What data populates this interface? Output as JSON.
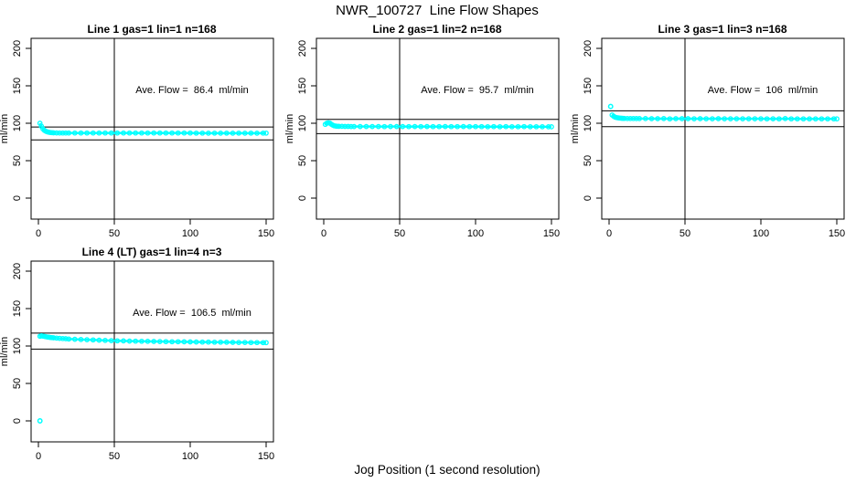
{
  "figure": {
    "title": "NWR_100727  Line Flow Shapes",
    "xlabel": "Jog Position (1 second resolution)"
  },
  "colors": {
    "marker": "#00FFFF",
    "axis": "#000000",
    "background": "#FFFFFF"
  },
  "chart_data": [
    {
      "type": "scatter",
      "title": "Line 1 gas=1 lin=1 n=168",
      "annotation": "Ave. Flow =  86.4  ml/min",
      "ave_flow_ml_min": 86.4,
      "n": 168,
      "ylabel": "ml/min",
      "xlim": [
        0,
        150
      ],
      "ylim": [
        0,
        200
      ],
      "x_ticks": [
        0,
        50,
        100,
        150
      ],
      "y_ticks": [
        0,
        50,
        100,
        150,
        200
      ],
      "vline_x": 50,
      "hlines": [
        95.0,
        77.8
      ],
      "points": [
        [
          1,
          100
        ],
        [
          2,
          96
        ],
        [
          3,
          92.5
        ],
        [
          4,
          90.5
        ],
        [
          5,
          89.2
        ],
        [
          6,
          88.4
        ],
        [
          7,
          87.9
        ],
        [
          8,
          87.6
        ],
        [
          9,
          87.4
        ],
        [
          10,
          87.2
        ],
        [
          12,
          87.1
        ],
        [
          14,
          87
        ],
        [
          16,
          87
        ],
        [
          18,
          87
        ],
        [
          20,
          87
        ],
        [
          24,
          87
        ],
        [
          28,
          87
        ],
        [
          32,
          87
        ],
        [
          36,
          86.9
        ],
        [
          40,
          86.9
        ],
        [
          44,
          87
        ],
        [
          48,
          87
        ],
        [
          52,
          87
        ],
        [
          56,
          86.9
        ],
        [
          60,
          87
        ],
        [
          64,
          87
        ],
        [
          68,
          86.9
        ],
        [
          72,
          87
        ],
        [
          76,
          87
        ],
        [
          80,
          86.9
        ],
        [
          84,
          87
        ],
        [
          88,
          86.9
        ],
        [
          92,
          87
        ],
        [
          96,
          86.9
        ],
        [
          100,
          86.9
        ],
        [
          104,
          86.8
        ],
        [
          108,
          86.8
        ],
        [
          112,
          86.7
        ],
        [
          116,
          86.8
        ],
        [
          120,
          86.7
        ],
        [
          124,
          86.8
        ],
        [
          128,
          86.7
        ],
        [
          132,
          86.8
        ],
        [
          136,
          86.7
        ],
        [
          140,
          86.8
        ],
        [
          144,
          86.7
        ],
        [
          148,
          86.8
        ],
        [
          150,
          86.8
        ]
      ],
      "isolated_points": []
    },
    {
      "type": "scatter",
      "title": "Line 2 gas=1 lin=2 n=168",
      "annotation": "Ave. Flow =  95.7  ml/min",
      "ave_flow_ml_min": 95.7,
      "n": 168,
      "ylabel": "ml/min",
      "xlim": [
        0,
        150
      ],
      "ylim": [
        0,
        200
      ],
      "x_ticks": [
        0,
        50,
        100,
        150
      ],
      "y_ticks": [
        0,
        50,
        100,
        150,
        200
      ],
      "vline_x": 50,
      "hlines": [
        105.3,
        86.1
      ],
      "points": [
        [
          1,
          98.5
        ],
        [
          2,
          100
        ],
        [
          3,
          100.6
        ],
        [
          4,
          100.2
        ],
        [
          5,
          98.6
        ],
        [
          6,
          97.4
        ],
        [
          7,
          96.6
        ],
        [
          8,
          96.2
        ],
        [
          9,
          96
        ],
        [
          10,
          95.9
        ],
        [
          12,
          95.8
        ],
        [
          14,
          95.7
        ],
        [
          16,
          95.7
        ],
        [
          18,
          95.6
        ],
        [
          20,
          95.6
        ],
        [
          24,
          95.6
        ],
        [
          28,
          95.6
        ],
        [
          32,
          95.6
        ],
        [
          36,
          95.6
        ],
        [
          40,
          95.5
        ],
        [
          44,
          95.6
        ],
        [
          48,
          95.6
        ],
        [
          52,
          95.6
        ],
        [
          56,
          95.5
        ],
        [
          60,
          95.6
        ],
        [
          64,
          95.5
        ],
        [
          68,
          95.6
        ],
        [
          72,
          95.5
        ],
        [
          76,
          95.5
        ],
        [
          80,
          95.6
        ],
        [
          84,
          95.5
        ],
        [
          88,
          95.5
        ],
        [
          92,
          95.6
        ],
        [
          96,
          95.5
        ],
        [
          100,
          95.5
        ],
        [
          104,
          95.5
        ],
        [
          108,
          95.4
        ],
        [
          112,
          95.5
        ],
        [
          116,
          95.4
        ],
        [
          120,
          95.5
        ],
        [
          124,
          95.4
        ],
        [
          128,
          95.4
        ],
        [
          132,
          95.5
        ],
        [
          136,
          95.4
        ],
        [
          140,
          95.4
        ],
        [
          144,
          95.4
        ],
        [
          148,
          95.3
        ],
        [
          150,
          95.3
        ]
      ],
      "isolated_points": []
    },
    {
      "type": "scatter",
      "title": "Line 3 gas=1 lin=3 n=168",
      "annotation": "Ave. Flow =  106  ml/min",
      "ave_flow_ml_min": 106,
      "n": 168,
      "ylabel": "ml/min",
      "xlim": [
        0,
        150
      ],
      "ylim": [
        0,
        200
      ],
      "x_ticks": [
        0,
        50,
        100,
        150
      ],
      "y_ticks": [
        0,
        50,
        100,
        150,
        200
      ],
      "vline_x": 50,
      "hlines": [
        116.6,
        95.4
      ],
      "points": [
        [
          2,
          111
        ],
        [
          3,
          109.3
        ],
        [
          4,
          108.2
        ],
        [
          5,
          107.6
        ],
        [
          6,
          107.2
        ],
        [
          7,
          106.9
        ],
        [
          8,
          106.7
        ],
        [
          9,
          106.6
        ],
        [
          10,
          106.5
        ],
        [
          12,
          106.4
        ],
        [
          14,
          106.3
        ],
        [
          16,
          106.3
        ],
        [
          18,
          106.2
        ],
        [
          20,
          106.2
        ],
        [
          24,
          106.2
        ],
        [
          28,
          106.1
        ],
        [
          32,
          106.1
        ],
        [
          36,
          106.2
        ],
        [
          40,
          105.8
        ],
        [
          44,
          106.1
        ],
        [
          48,
          106.1
        ],
        [
          52,
          106.1
        ],
        [
          56,
          106
        ],
        [
          60,
          106.1
        ],
        [
          64,
          106
        ],
        [
          68,
          106
        ],
        [
          72,
          106.1
        ],
        [
          76,
          106
        ],
        [
          80,
          106
        ],
        [
          84,
          106
        ],
        [
          88,
          106
        ],
        [
          92,
          106
        ],
        [
          96,
          106
        ],
        [
          100,
          106
        ],
        [
          104,
          105.9
        ],
        [
          108,
          106
        ],
        [
          112,
          105.9
        ],
        [
          116,
          106.2
        ],
        [
          120,
          105.9
        ],
        [
          124,
          105.9
        ],
        [
          128,
          105.9
        ],
        [
          132,
          105.8
        ],
        [
          136,
          105.9
        ],
        [
          140,
          105.8
        ],
        [
          144,
          105.8
        ],
        [
          148,
          105.8
        ],
        [
          150,
          105.8
        ]
      ],
      "isolated_points": [
        [
          1,
          122.5
        ]
      ]
    },
    {
      "type": "scatter",
      "title": "Line 4 (LT) gas=1 lin=4 n=3",
      "annotation": "Ave. Flow =  106.5  ml/min",
      "ave_flow_ml_min": 106.5,
      "n": 3,
      "ylabel": "ml/min",
      "xlim": [
        0,
        150
      ],
      "ylim": [
        0,
        200
      ],
      "x_ticks": [
        0,
        50,
        100,
        150
      ],
      "y_ticks": [
        0,
        50,
        100,
        150,
        200
      ],
      "vline_x": 50,
      "hlines": [
        117.2,
        95.9
      ],
      "points": [
        [
          1,
          113
        ],
        [
          2,
          113.6
        ],
        [
          3,
          113.2
        ],
        [
          4,
          112.8
        ],
        [
          5,
          112.4
        ],
        [
          6,
          112
        ],
        [
          7,
          111.7
        ],
        [
          8,
          111.4
        ],
        [
          9,
          111.2
        ],
        [
          10,
          111
        ],
        [
          12,
          110.6
        ],
        [
          14,
          110.2
        ],
        [
          16,
          110
        ],
        [
          18,
          109.7
        ],
        [
          20,
          109.4
        ],
        [
          24,
          109
        ],
        [
          28,
          108.6
        ],
        [
          32,
          108.4
        ],
        [
          36,
          108.2
        ],
        [
          40,
          107.8
        ],
        [
          44,
          107.4
        ],
        [
          48,
          107.2
        ],
        [
          52,
          107
        ],
        [
          56,
          106.8
        ],
        [
          60,
          106.6
        ],
        [
          64,
          106.5
        ],
        [
          68,
          106.4
        ],
        [
          72,
          106.2
        ],
        [
          76,
          106.1
        ],
        [
          80,
          106
        ],
        [
          84,
          105.8
        ],
        [
          88,
          105.7
        ],
        [
          92,
          105.7
        ],
        [
          96,
          105.6
        ],
        [
          100,
          105.5
        ],
        [
          104,
          105.4
        ],
        [
          108,
          105.3
        ],
        [
          112,
          105.2
        ],
        [
          116,
          105.1
        ],
        [
          120,
          105.1
        ],
        [
          124,
          105
        ],
        [
          128,
          104.9
        ],
        [
          132,
          104.8
        ],
        [
          136,
          104.7
        ],
        [
          140,
          104.6
        ],
        [
          144,
          104.6
        ],
        [
          148,
          104.5
        ],
        [
          150,
          104.5
        ]
      ],
      "isolated_points": [
        [
          1,
          0
        ]
      ]
    }
  ]
}
